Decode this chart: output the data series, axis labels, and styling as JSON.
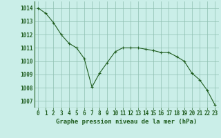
{
  "x": [
    0,
    1,
    2,
    3,
    4,
    5,
    6,
    7,
    8,
    9,
    10,
    11,
    12,
    13,
    14,
    15,
    16,
    17,
    18,
    19,
    20,
    21,
    22,
    23
  ],
  "y": [
    1014.0,
    1013.6,
    1012.9,
    1012.0,
    1011.35,
    1011.0,
    1010.2,
    1008.05,
    1009.1,
    1009.9,
    1010.7,
    1011.0,
    1011.0,
    1011.0,
    1010.9,
    1010.8,
    1010.65,
    1010.65,
    1010.35,
    1010.0,
    1009.1,
    1008.6,
    1007.8,
    1006.7
  ],
  "line_color": "#1e5c1e",
  "marker": "+",
  "marker_size": 3,
  "background_color": "#caeee8",
  "grid_color": "#8fbfb0",
  "ylabel_values": [
    1007,
    1008,
    1009,
    1010,
    1011,
    1012,
    1013,
    1014
  ],
  "xlabel": "Graphe pression niveau de la mer (hPa)",
  "xlim": [
    -0.5,
    23.5
  ],
  "ylim": [
    1006.5,
    1014.5
  ],
  "tick_fontsize": 5.5,
  "label_fontsize": 6.5
}
